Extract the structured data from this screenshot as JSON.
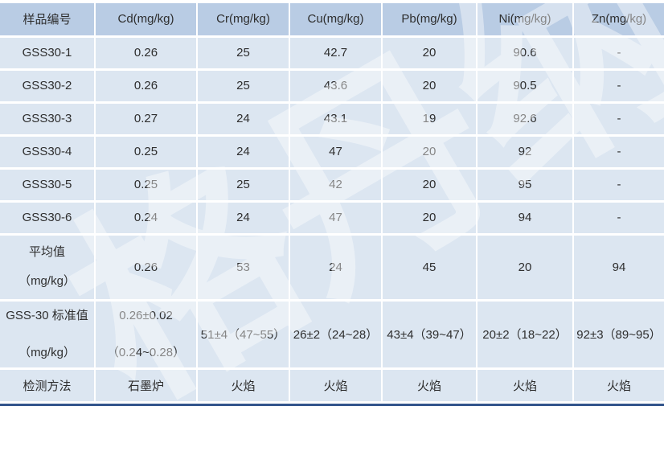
{
  "watermark": {
    "text": "格丹纳"
  },
  "colors": {
    "header_bg": "#b9cce4",
    "row_bg": "#dce6f1",
    "grid": "#ffffff",
    "text": "#2e2e2e",
    "bottom_bar": "#33558c"
  },
  "table": {
    "headers": [
      "样品编号",
      "Cd(mg/kg)",
      "Cr(mg/kg)",
      "Cu(mg/kg)",
      "Pb(mg/kg)",
      "Ni(mg/kg)",
      "Zn(mg/kg)"
    ],
    "sample_rows": [
      [
        "GSS30-1",
        "0.26",
        "25",
        "42.7",
        "20",
        "90.6",
        "-"
      ],
      [
        "GSS30-2",
        "0.26",
        "25",
        "43.6",
        "20",
        "90.5",
        "-"
      ],
      [
        "GSS30-3",
        "0.27",
        "24",
        "43.1",
        "19",
        "92.6",
        "-"
      ],
      [
        "GSS30-4",
        "0.25",
        "24",
        "47",
        "20",
        "92",
        "-"
      ],
      [
        "GSS30-5",
        "0.25",
        "25",
        "42",
        "20",
        "95",
        "-"
      ],
      [
        "GSS30-6",
        "0.24",
        "24",
        "47",
        "20",
        "94",
        "-"
      ]
    ],
    "average_row": {
      "label_line1": "平均值",
      "label_line2": "（mg/kg）",
      "values": [
        "0.26",
        "53",
        "24",
        "45",
        "20",
        "94"
      ]
    },
    "standard_row": {
      "label_line1": "GSS-30 标准值",
      "label_line2": "（mg/kg）",
      "cd_line1": "0.26±0.02",
      "cd_line2": "（0.24~0.28）",
      "values": [
        "51±4（47~55）",
        "26±2（24~28）",
        "43±4（39~47）",
        "20±2（18~22）",
        "92±3（89~95）"
      ]
    },
    "method_row": {
      "label": "检测方法",
      "values": [
        "石墨炉",
        "火焰",
        "火焰",
        "火焰",
        "火焰",
        "火焰"
      ]
    }
  },
  "chart_data": {
    "type": "table",
    "columns": [
      "样品编号",
      "Cd(mg/kg)",
      "Cr(mg/kg)",
      "Cu(mg/kg)",
      "Pb(mg/kg)",
      "Ni(mg/kg)",
      "Zn(mg/kg)"
    ],
    "rows": [
      [
        "GSS30-1",
        "0.26",
        "25",
        "42.7",
        "20",
        "90.6",
        "-"
      ],
      [
        "GSS30-2",
        "0.26",
        "25",
        "43.6",
        "20",
        "90.5",
        "-"
      ],
      [
        "GSS30-3",
        "0.27",
        "24",
        "43.1",
        "19",
        "92.6",
        "-"
      ],
      [
        "GSS30-4",
        "0.25",
        "24",
        "47",
        "20",
        "92",
        "-"
      ],
      [
        "GSS30-5",
        "0.25",
        "25",
        "42",
        "20",
        "95",
        "-"
      ],
      [
        "GSS30-6",
        "0.24",
        "24",
        "47",
        "20",
        "94",
        "-"
      ],
      [
        "平均值（mg/kg）",
        "0.26",
        "53",
        "24",
        "45",
        "20",
        "94"
      ],
      [
        "GSS-30 标准值（mg/kg）",
        "0.26±0.02（0.24~0.28）",
        "51±4（47~55）",
        "26±2（24~28）",
        "43±4（39~47）",
        "20±2（18~22）",
        "92±3（89~95）"
      ],
      [
        "检测方法",
        "石墨炉",
        "火焰",
        "火焰",
        "火焰",
        "火焰",
        "火焰"
      ]
    ]
  }
}
